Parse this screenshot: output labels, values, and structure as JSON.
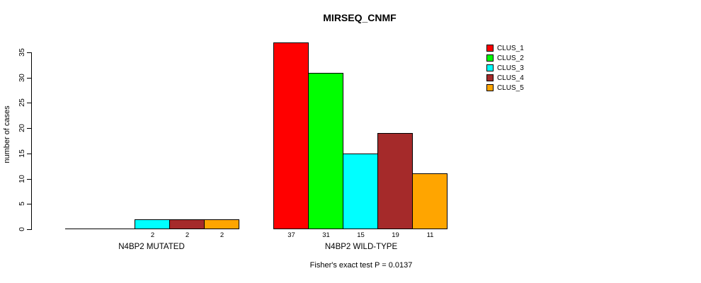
{
  "chart_data": {
    "type": "bar",
    "title": "MIRSEQ_CNMF",
    "ylabel": "number of cases",
    "yticks": [
      0,
      5,
      10,
      15,
      20,
      25,
      30,
      35
    ],
    "ylim": [
      0,
      37
    ],
    "grid": false,
    "legend_position": "top-right-outside-plot",
    "legend": [
      {
        "label": "CLUS_1",
        "color": "#FF0000"
      },
      {
        "label": "CLUS_2",
        "color": "#00FF00"
      },
      {
        "label": "CLUS_3",
        "color": "#00FFFF"
      },
      {
        "label": "CLUS_4",
        "color": "#A52A2A"
      },
      {
        "label": "CLUS_5",
        "color": "#FFA500"
      }
    ],
    "groups": [
      {
        "label": "N4BP2 MUTATED",
        "values": [
          0,
          0,
          2,
          2,
          2
        ]
      },
      {
        "label": "N4BP2 WILD-TYPE",
        "values": [
          37,
          31,
          15,
          19,
          11
        ]
      }
    ],
    "footnote": "Fisher's exact test P = 0.0137"
  }
}
